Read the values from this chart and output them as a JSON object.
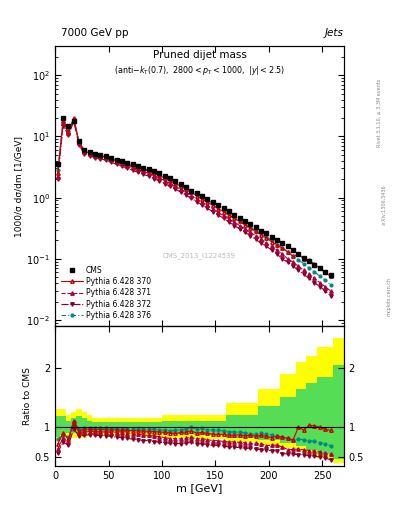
{
  "title_main": "7000 GeV pp",
  "title_right": "Jets",
  "plot_title": "Pruned dijet mass",
  "ylabel_main": "1000/σ dσ/dm [1/GeV]",
  "ylabel_ratio": "Ratio to CMS",
  "xlabel": "m [GeV]",
  "rivet_label": "Rivet 3.1.10, ≥ 3.3M events",
  "arxiv_label": "arXiv:1306.3436",
  "cms_id": "CMS_2013_I1224539",
  "mcplots_label": "mcplots.cern.ch",
  "x_data": [
    2.5,
    7.5,
    12.5,
    17.5,
    22.5,
    27.5,
    32.5,
    37.5,
    42.5,
    47.5,
    52.5,
    57.5,
    62.5,
    67.5,
    72.5,
    77.5,
    82.5,
    87.5,
    92.5,
    97.5,
    102.5,
    107.5,
    112.5,
    117.5,
    122.5,
    127.5,
    132.5,
    137.5,
    142.5,
    147.5,
    152.5,
    157.5,
    162.5,
    167.5,
    172.5,
    177.5,
    182.5,
    187.5,
    192.5,
    197.5,
    202.5,
    207.5,
    212.5,
    217.5,
    222.5,
    227.5,
    232.5,
    237.5,
    242.5,
    247.5,
    252.5,
    257.5
  ],
  "cms_y": [
    3.5,
    20.0,
    15.0,
    18.0,
    8.5,
    6.0,
    5.5,
    5.2,
    5.0,
    4.8,
    4.5,
    4.2,
    4.0,
    3.7,
    3.5,
    3.3,
    3.1,
    2.9,
    2.7,
    2.5,
    2.3,
    2.1,
    1.9,
    1.7,
    1.5,
    1.3,
    1.2,
    1.05,
    0.95,
    0.85,
    0.75,
    0.67,
    0.6,
    0.53,
    0.47,
    0.42,
    0.37,
    0.33,
    0.29,
    0.26,
    0.23,
    0.2,
    0.18,
    0.16,
    0.14,
    0.12,
    0.105,
    0.092,
    0.08,
    0.07,
    0.062,
    0.055
  ],
  "py370_y": [
    2.5,
    18.0,
    12.0,
    20.0,
    8.0,
    5.8,
    5.3,
    5.0,
    4.8,
    4.6,
    4.3,
    4.0,
    3.8,
    3.5,
    3.3,
    3.1,
    2.9,
    2.7,
    2.5,
    2.3,
    2.1,
    1.9,
    1.7,
    1.55,
    1.38,
    1.22,
    1.08,
    0.96,
    0.85,
    0.75,
    0.66,
    0.59,
    0.52,
    0.46,
    0.41,
    0.36,
    0.32,
    0.28,
    0.25,
    0.22,
    0.19,
    0.17,
    0.15,
    0.13,
    0.11,
    0.12,
    0.1,
    0.095,
    0.082,
    0.07,
    0.06,
    0.052
  ],
  "py371_y": [
    2.2,
    16.5,
    11.5,
    19.0,
    7.8,
    5.5,
    5.1,
    4.8,
    4.6,
    4.4,
    4.1,
    3.8,
    3.6,
    3.3,
    3.1,
    2.9,
    2.7,
    2.5,
    2.3,
    2.1,
    1.9,
    1.7,
    1.53,
    1.37,
    1.22,
    1.08,
    0.96,
    0.85,
    0.75,
    0.66,
    0.58,
    0.51,
    0.45,
    0.4,
    0.35,
    0.31,
    0.27,
    0.24,
    0.21,
    0.18,
    0.16,
    0.14,
    0.12,
    0.1,
    0.088,
    0.076,
    0.065,
    0.056,
    0.048,
    0.041,
    0.035,
    0.03
  ],
  "py372_y": [
    2.0,
    15.0,
    10.5,
    17.5,
    7.2,
    5.2,
    4.8,
    4.5,
    4.3,
    4.1,
    3.8,
    3.5,
    3.3,
    3.0,
    2.8,
    2.6,
    2.4,
    2.25,
    2.05,
    1.87,
    1.7,
    1.53,
    1.38,
    1.23,
    1.1,
    0.97,
    0.86,
    0.76,
    0.67,
    0.59,
    0.52,
    0.46,
    0.4,
    0.35,
    0.31,
    0.27,
    0.24,
    0.21,
    0.18,
    0.16,
    0.14,
    0.12,
    0.1,
    0.088,
    0.076,
    0.065,
    0.056,
    0.048,
    0.041,
    0.035,
    0.03,
    0.025
  ],
  "py376_y": [
    2.8,
    17.5,
    12.5,
    19.5,
    8.2,
    5.9,
    5.4,
    5.1,
    4.9,
    4.7,
    4.4,
    4.1,
    3.9,
    3.6,
    3.4,
    3.2,
    3.0,
    2.8,
    2.6,
    2.38,
    2.18,
    1.98,
    1.8,
    1.62,
    1.46,
    1.3,
    1.16,
    1.03,
    0.91,
    0.81,
    0.71,
    0.63,
    0.55,
    0.49,
    0.43,
    0.38,
    0.33,
    0.29,
    0.26,
    0.23,
    0.2,
    0.17,
    0.15,
    0.13,
    0.11,
    0.096,
    0.083,
    0.071,
    0.061,
    0.052,
    0.045,
    0.038
  ],
  "color_cms": "#000000",
  "color_370": "#cc0000",
  "color_371": "#aa0044",
  "color_372": "#880022",
  "color_376": "#008888",
  "bg_color": "#ffffff",
  "ylim_main": [
    0.008,
    300
  ],
  "ylim_ratio": [
    0.35,
    2.7
  ],
  "xlim": [
    0,
    270
  ],
  "band_x_edges": [
    0,
    5,
    10,
    15,
    20,
    25,
    30,
    35,
    40,
    50,
    60,
    80,
    100,
    130,
    160,
    190,
    210,
    225,
    235,
    245,
    260,
    270
  ],
  "yellow_hi": [
    1.3,
    1.3,
    1.2,
    1.25,
    1.3,
    1.25,
    1.2,
    1.15,
    1.15,
    1.15,
    1.15,
    1.15,
    1.2,
    1.2,
    1.4,
    1.65,
    1.9,
    2.1,
    2.2,
    2.35,
    2.5,
    2.5
  ],
  "yellow_lo": [
    0.75,
    0.8,
    0.82,
    0.82,
    0.82,
    0.82,
    0.85,
    0.85,
    0.85,
    0.85,
    0.85,
    0.83,
    0.82,
    0.8,
    0.75,
    0.7,
    0.65,
    0.6,
    0.55,
    0.48,
    0.4,
    0.4
  ],
  "green_hi": [
    1.18,
    1.18,
    1.1,
    1.15,
    1.18,
    1.15,
    1.1,
    1.08,
    1.08,
    1.08,
    1.08,
    1.08,
    1.1,
    1.1,
    1.2,
    1.35,
    1.5,
    1.65,
    1.75,
    1.85,
    2.05,
    2.1
  ],
  "green_lo": [
    0.83,
    0.87,
    0.9,
    0.9,
    0.9,
    0.9,
    0.92,
    0.92,
    0.92,
    0.92,
    0.92,
    0.9,
    0.88,
    0.87,
    0.82,
    0.78,
    0.73,
    0.68,
    0.62,
    0.55,
    0.47,
    0.45
  ]
}
